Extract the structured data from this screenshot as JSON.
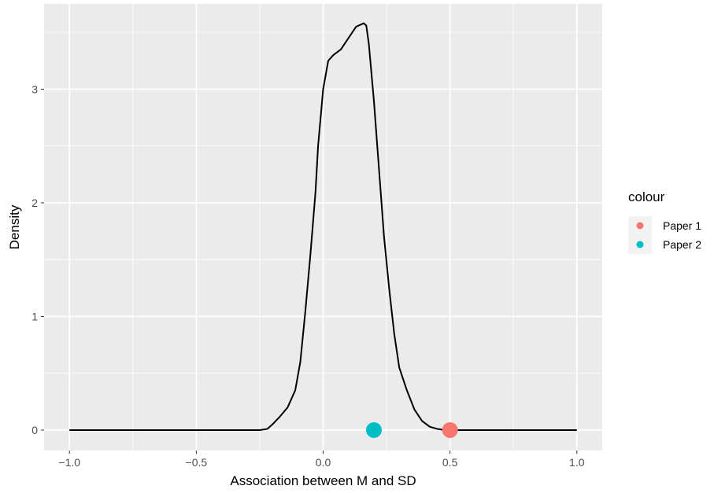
{
  "chart_data": {
    "type": "line",
    "xlabel": "Association between M and SD",
    "ylabel": "Density",
    "xlim": [
      -1.1,
      1.1
    ],
    "ylim": [
      -0.18,
      3.75
    ],
    "x_ticks": [
      -1.0,
      -0.5,
      0.0,
      0.5,
      1.0
    ],
    "x_tick_labels": [
      "−1.0",
      "−0.5",
      "0.0",
      "0.5",
      "1.0"
    ],
    "y_ticks": [
      0,
      1,
      2,
      3
    ],
    "y_tick_labels": [
      "0",
      "1",
      "2",
      "3"
    ],
    "grid": true,
    "series": [
      {
        "kind": "density-line",
        "color": "#000000",
        "x": [
          -1.0,
          -0.5,
          -0.25,
          -0.22,
          -0.2,
          -0.17,
          -0.14,
          -0.11,
          -0.09,
          -0.07,
          -0.05,
          -0.03,
          -0.02,
          -0.01,
          0.0,
          0.02,
          0.04,
          0.07,
          0.1,
          0.13,
          0.16,
          0.17,
          0.18,
          0.2,
          0.22,
          0.24,
          0.26,
          0.28,
          0.3,
          0.33,
          0.36,
          0.39,
          0.42,
          0.45,
          0.48,
          0.5,
          1.0
        ],
        "y": [
          0.0,
          0.0,
          0.0,
          0.01,
          0.05,
          0.12,
          0.2,
          0.35,
          0.6,
          1.05,
          1.55,
          2.1,
          2.5,
          2.75,
          3.0,
          3.25,
          3.3,
          3.35,
          3.45,
          3.55,
          3.58,
          3.56,
          3.4,
          2.9,
          2.3,
          1.7,
          1.25,
          0.85,
          0.55,
          0.35,
          0.18,
          0.08,
          0.03,
          0.01,
          0.0,
          0.0,
          0.0
        ]
      }
    ],
    "points": [
      {
        "name": "Paper 1",
        "x": 0.5,
        "y": 0,
        "color": "#f8766d"
      },
      {
        "name": "Paper 2",
        "x": 0.2,
        "y": 0,
        "color": "#00bfc4"
      }
    ],
    "legend": {
      "title": "colour",
      "position": "right",
      "entries": [
        {
          "label": "Paper 1",
          "color": "#f8766d"
        },
        {
          "label": "Paper 2",
          "color": "#00bfc4"
        }
      ]
    },
    "colors": {
      "panel_background": "#ebebeb",
      "gridline": "#ffffff",
      "legend_key_background": "#f2f2f2"
    }
  }
}
